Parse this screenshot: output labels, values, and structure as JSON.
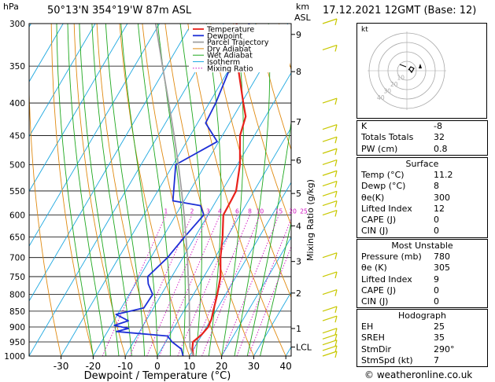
{
  "header": {
    "hpa_label": "hPa",
    "station": "50°13'N  354°19'W  87m  ASL",
    "km_label": "km",
    "asl_label": "ASL",
    "datetime": "17.12.2021  12GMT  (Base: 12)"
  },
  "colors": {
    "temperature": "#e8201a",
    "dewpoint": "#1d2fd6",
    "parcel": "#a0a0a0",
    "dry_adiabat": "#e08a10",
    "wet_adiabat": "#1ea81e",
    "isotherm": "#1ea8e0",
    "mixing_ratio": "#d010c0",
    "wind": "#c8c800"
  },
  "legend": [
    "Temperature",
    "Dewpoint",
    "Parcel Trajectory",
    "Dry Adiabat",
    "Wet Adiabat",
    "Isotherm",
    "Mixing Ratio"
  ],
  "chart_data": {
    "type": "line",
    "xlabel": "Dewpoint / Temperature (°C)",
    "ylabel_right": "Mixing Ratio (g/kg)",
    "xlim": [
      -35,
      40
    ],
    "x_ticks": [
      -30,
      -20,
      -10,
      0,
      10,
      20,
      30,
      40
    ],
    "pressure_levels": [
      300,
      350,
      400,
      450,
      500,
      550,
      600,
      650,
      700,
      750,
      800,
      850,
      900,
      950,
      1000
    ],
    "km_ticks": [
      {
        "label": "9",
        "p": 312
      },
      {
        "label": "8",
        "p": 357
      },
      {
        "label": "7",
        "p": 428
      },
      {
        "label": "6",
        "p": 492
      },
      {
        "label": "5",
        "p": 555
      },
      {
        "label": "4",
        "p": 624
      },
      {
        "label": "3",
        "p": 710
      },
      {
        "label": "2",
        "p": 796
      },
      {
        "label": "1",
        "p": 905
      },
      {
        "label": "LCL",
        "p": 968
      }
    ],
    "mixing_ratio_labels": [
      "1",
      "2",
      "3",
      "4",
      "6",
      "8",
      "10",
      "15",
      "20",
      "25"
    ],
    "series": [
      {
        "name": "Temperature",
        "points": [
          [
            1000,
            11.2
          ],
          [
            975,
            9.6
          ],
          [
            950,
            8.5
          ],
          [
            925,
            9.9
          ],
          [
            900,
            10.5
          ],
          [
            875,
            10.1
          ],
          [
            850,
            9.2
          ],
          [
            800,
            7.4
          ],
          [
            750,
            5.2
          ],
          [
            700,
            1.7
          ],
          [
            650,
            -1.4
          ],
          [
            600,
            -5.2
          ],
          [
            570,
            -5.4
          ],
          [
            550,
            -5.6
          ],
          [
            500,
            -9.2
          ],
          [
            450,
            -14.5
          ],
          [
            420,
            -16.2
          ],
          [
            400,
            -19.4
          ],
          [
            350,
            -27.8
          ],
          [
            300,
            -36.0
          ]
        ]
      },
      {
        "name": "Dewpoint",
        "points": [
          [
            1000,
            8.0
          ],
          [
            975,
            6.2
          ],
          [
            950,
            2.0
          ],
          [
            930,
            -0.5
          ],
          [
            915,
            -17.2
          ],
          [
            905,
            -14.0
          ],
          [
            895,
            -19.0
          ],
          [
            880,
            -15.5
          ],
          [
            860,
            -20.5
          ],
          [
            840,
            -13.0
          ],
          [
            800,
            -12.7
          ],
          [
            770,
            -16.0
          ],
          [
            750,
            -17.5
          ],
          [
            700,
            -14.8
          ],
          [
            650,
            -13.3
          ],
          [
            600,
            -11.3
          ],
          [
            580,
            -14.0
          ],
          [
            570,
            -23.5
          ],
          [
            500,
            -29.2
          ],
          [
            460,
            -20.5
          ],
          [
            430,
            -27.5
          ],
          [
            400,
            -28.0
          ],
          [
            350,
            -30.0
          ],
          [
            320,
            -32.5
          ],
          [
            300,
            -32.0
          ]
        ]
      },
      {
        "name": "Parcel Trajectory",
        "points": [
          [
            1000,
            11.2
          ],
          [
            968,
            8.5
          ],
          [
            900,
            4.7
          ],
          [
            850,
            1.8
          ],
          [
            800,
            -1.4
          ],
          [
            750,
            -4.9
          ],
          [
            700,
            -8.6
          ],
          [
            650,
            -12.8
          ],
          [
            600,
            -17.4
          ],
          [
            550,
            -22.6
          ],
          [
            500,
            -28.4
          ],
          [
            450,
            -35.0
          ],
          [
            400,
            -42.6
          ],
          [
            350,
            -51.3
          ],
          [
            300,
            -61.2
          ]
        ]
      }
    ]
  },
  "hodograph": {
    "label": "kt",
    "ring_labels": [
      "10",
      "20",
      "30",
      "40"
    ]
  },
  "indices": {
    "top": [
      {
        "k": "K",
        "v": "-8"
      },
      {
        "k": "Totals Totals",
        "v": "32"
      },
      {
        "k": "PW (cm)",
        "v": "0.8"
      }
    ],
    "surface": {
      "title": "Surface",
      "rows": [
        {
          "k": "Temp (°C)",
          "v": "11.2"
        },
        {
          "k": "Dewp (°C)",
          "v": "8"
        },
        {
          "k": "θe(K)",
          "v": "300"
        },
        {
          "k": "Lifted Index",
          "v": "12"
        },
        {
          "k": "CAPE (J)",
          "v": "0"
        },
        {
          "k": "CIN (J)",
          "v": "0"
        }
      ]
    },
    "most_unstable": {
      "title": "Most Unstable",
      "rows": [
        {
          "k": "Pressure (mb)",
          "v": "780"
        },
        {
          "k": "θe (K)",
          "v": "305"
        },
        {
          "k": "Lifted Index",
          "v": "9"
        },
        {
          "k": "CAPE (J)",
          "v": "0"
        },
        {
          "k": "CIN (J)",
          "v": "0"
        }
      ]
    },
    "hodograph": {
      "title": "Hodograph",
      "rows": [
        {
          "k": "EH",
          "v": "25"
        },
        {
          "k": "SREH",
          "v": "35"
        },
        {
          "k": "StmDir",
          "v": "290°"
        },
        {
          "k": "StmSpd (kt)",
          "v": "7"
        }
      ]
    }
  },
  "footer": "© weatheronline.co.uk"
}
